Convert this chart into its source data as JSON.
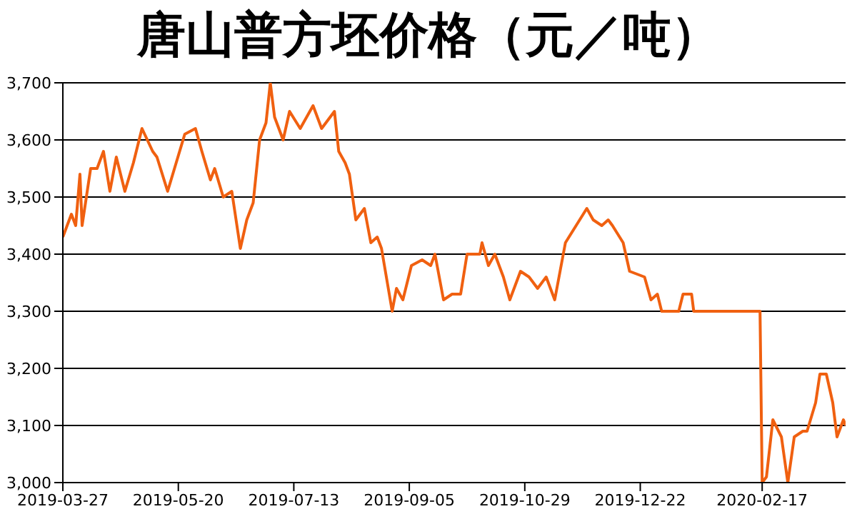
{
  "chart_data": {
    "type": "line",
    "title": "唐山普方坯价格（元／吨）",
    "x": [
      "2019-03-27",
      "2019-03-31",
      "2019-04-02",
      "2019-04-04",
      "2019-04-05",
      "2019-04-09",
      "2019-04-12",
      "2019-04-15",
      "2019-04-18",
      "2019-04-21",
      "2019-04-25",
      "2019-04-29",
      "2019-05-03",
      "2019-05-08",
      "2019-05-10",
      "2019-05-15",
      "2019-05-19",
      "2019-05-23",
      "2019-05-28",
      "2019-05-31",
      "2019-06-04",
      "2019-06-06",
      "2019-06-10",
      "2019-06-14",
      "2019-06-18",
      "2019-06-21",
      "2019-06-24",
      "2019-06-27",
      "2019-06-30",
      "2019-07-02",
      "2019-07-04",
      "2019-07-08",
      "2019-07-11",
      "2019-07-16",
      "2019-07-22",
      "2019-07-26",
      "2019-08-01",
      "2019-08-03",
      "2019-08-06",
      "2019-08-08",
      "2019-08-11",
      "2019-08-15",
      "2019-08-18",
      "2019-08-21",
      "2019-08-23",
      "2019-08-28",
      "2019-08-30",
      "2019-09-02",
      "2019-09-06",
      "2019-09-11",
      "2019-09-15",
      "2019-09-17",
      "2019-09-21",
      "2019-09-25",
      "2019-09-29",
      "2019-10-02",
      "2019-10-08",
      "2019-10-09",
      "2019-10-12",
      "2019-10-15",
      "2019-10-19",
      "2019-10-22",
      "2019-10-27",
      "2019-10-31",
      "2019-11-04",
      "2019-11-08",
      "2019-11-12",
      "2019-11-17",
      "2019-11-22",
      "2019-11-27",
      "2019-11-30",
      "2019-12-04",
      "2019-12-07",
      "2019-12-09",
      "2019-12-14",
      "2019-12-17",
      "2019-12-24",
      "2019-12-27",
      "2019-12-30",
      "2020-01-01",
      "2020-01-09",
      "2020-01-11",
      "2020-01-15",
      "2020-01-16",
      "2020-02-16",
      "2020-02-17",
      "2020-02-19",
      "2020-02-22",
      "2020-02-26",
      "2020-02-29",
      "2020-03-03",
      "2020-03-07",
      "2020-03-09",
      "2020-03-13",
      "2020-03-15",
      "2020-03-18",
      "2020-03-21",
      "2020-03-23",
      "2020-03-26",
      "2020-03-27"
    ],
    "series": [
      {
        "color": "#f06010",
        "values": [
          3430,
          3470,
          3450,
          3540,
          3450,
          3550,
          3550,
          3580,
          3510,
          3570,
          3510,
          3560,
          3620,
          3580,
          3570,
          3510,
          3560,
          3610,
          3620,
          3580,
          3530,
          3550,
          3500,
          3510,
          3410,
          3460,
          3490,
          3600,
          3630,
          3700,
          3640,
          3600,
          3650,
          3620,
          3660,
          3620,
          3650,
          3580,
          3560,
          3540,
          3460,
          3480,
          3420,
          3430,
          3410,
          3300,
          3340,
          3320,
          3380,
          3390,
          3380,
          3400,
          3320,
          3330,
          3330,
          3400,
          3400,
          3420,
          3380,
          3400,
          3360,
          3320,
          3370,
          3360,
          3340,
          3360,
          3320,
          3420,
          3450,
          3480,
          3460,
          3450,
          3460,
          3450,
          3420,
          3370,
          3360,
          3320,
          3330,
          3300,
          3300,
          3330,
          3330,
          3300,
          3300,
          3000,
          3010,
          3110,
          3080,
          3000,
          3080,
          3090,
          3090,
          3140,
          3190,
          3190,
          3140,
          3080,
          3110,
          3100
        ]
      }
    ],
    "xlim": [
      "2019-03-27",
      "2020-03-27"
    ],
    "xticks": [
      "2019-03-27",
      "2019-05-20",
      "2019-07-13",
      "2019-09-05",
      "2019-10-29",
      "2019-12-22",
      "2020-02-17"
    ],
    "ylim": [
      3000,
      3700
    ],
    "yticks": [
      {
        "value": 3000,
        "label": "3,000"
      },
      {
        "value": 3100,
        "label": "3,100"
      },
      {
        "value": 3200,
        "label": "3,200"
      },
      {
        "value": 3300,
        "label": "3,300"
      },
      {
        "value": 3400,
        "label": "3,400"
      },
      {
        "value": 3500,
        "label": "3,500"
      },
      {
        "value": 3600,
        "label": "3,600"
      },
      {
        "value": 3700,
        "label": "3,700"
      }
    ],
    "grid": "y",
    "legend": false,
    "marker": "none",
    "line_style": "solid"
  }
}
